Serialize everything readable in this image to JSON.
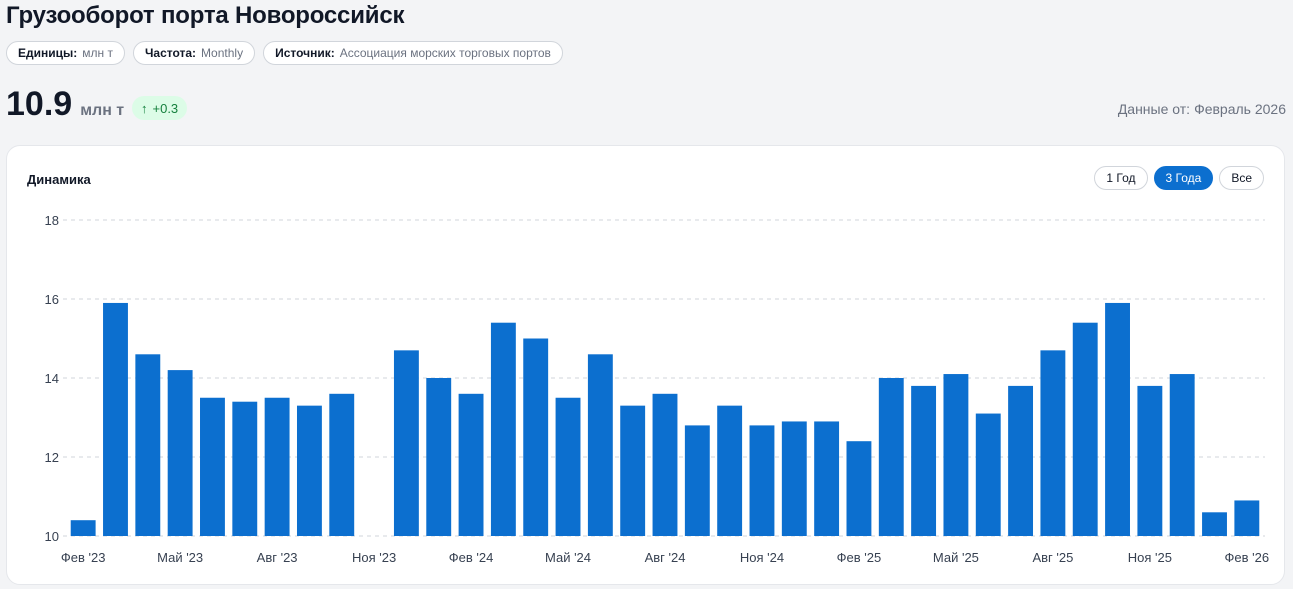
{
  "header": {
    "title": "Грузооборот порта Новороссийск",
    "chips": [
      {
        "key": "Единицы:",
        "value": "млн т"
      },
      {
        "key": "Частота:",
        "value": "Monthly"
      },
      {
        "key": "Источник:",
        "value": "Ассоциация морских торговых портов"
      }
    ]
  },
  "kpi": {
    "value": "10.9",
    "unit": "млн т",
    "delta_icon": "arrow-up-icon",
    "delta_arrow": "↑",
    "delta": "+0.3",
    "as_of_label": "Данные от:",
    "as_of_value": "Февраль 2026"
  },
  "card": {
    "title": "Динамика",
    "ranges": [
      {
        "label": "1 Год",
        "active": false
      },
      {
        "label": "3 Года",
        "active": true
      },
      {
        "label": "Все",
        "active": false
      }
    ]
  },
  "colors": {
    "bar": "#0c6fcf",
    "accent": "#0c6fcf",
    "positive_bg": "#dcfce7",
    "positive_text": "#15803d",
    "grid": "#d1d5db"
  },
  "chart_data": {
    "type": "bar",
    "title": "",
    "xlabel": "",
    "ylabel": "",
    "ylim": [
      10,
      18
    ],
    "yticks": [
      10,
      12,
      14,
      16,
      18
    ],
    "grid": true,
    "categories": [
      "Фев '23",
      "Мар '23",
      "Апр '23",
      "Май '23",
      "Июн '23",
      "Июл '23",
      "Авг '23",
      "Сен '23",
      "Окт '23",
      "Ноя '23",
      "Дек '23",
      "Янв '24",
      "Фев '24",
      "Мар '24",
      "Апр '24",
      "Май '24",
      "Июн '24",
      "Июл '24",
      "Авг '24",
      "Сен '24",
      "Окт '24",
      "Ноя '24",
      "Дек '24",
      "Янв '25",
      "Фев '25",
      "Мар '25",
      "Апр '25",
      "Май '25",
      "Июн '25",
      "Июл '25",
      "Авг '25",
      "Сен '25",
      "Окт '25",
      "Ноя '25",
      "Дек '25",
      "Янв '26",
      "Фев '26"
    ],
    "xtick_labels": [
      {
        "index": 0,
        "label": "Фев '23"
      },
      {
        "index": 3,
        "label": "Май '23"
      },
      {
        "index": 6,
        "label": "Авг '23"
      },
      {
        "index": 9,
        "label": "Ноя '23"
      },
      {
        "index": 12,
        "label": "Фев '24"
      },
      {
        "index": 15,
        "label": "Май '24"
      },
      {
        "index": 18,
        "label": "Авг '24"
      },
      {
        "index": 21,
        "label": "Ноя '24"
      },
      {
        "index": 24,
        "label": "Фев '25"
      },
      {
        "index": 27,
        "label": "Май '25"
      },
      {
        "index": 30,
        "label": "Авг '25"
      },
      {
        "index": 33,
        "label": "Ноя '25"
      },
      {
        "index": 36,
        "label": "Фев '26"
      }
    ],
    "series": [
      {
        "values": [
          10.4,
          15.9,
          14.6,
          14.2,
          13.5,
          13.4,
          13.5,
          13.3,
          13.6,
          null,
          14.7,
          14.0,
          13.6,
          15.4,
          15.0,
          13.5,
          14.6,
          13.3,
          13.6,
          12.8,
          13.3,
          12.8,
          12.9,
          12.9,
          12.4,
          14.0,
          13.8,
          14.1,
          13.1,
          13.8,
          14.7,
          15.4,
          15.9,
          13.8,
          14.1,
          10.6,
          10.9
        ]
      }
    ]
  }
}
